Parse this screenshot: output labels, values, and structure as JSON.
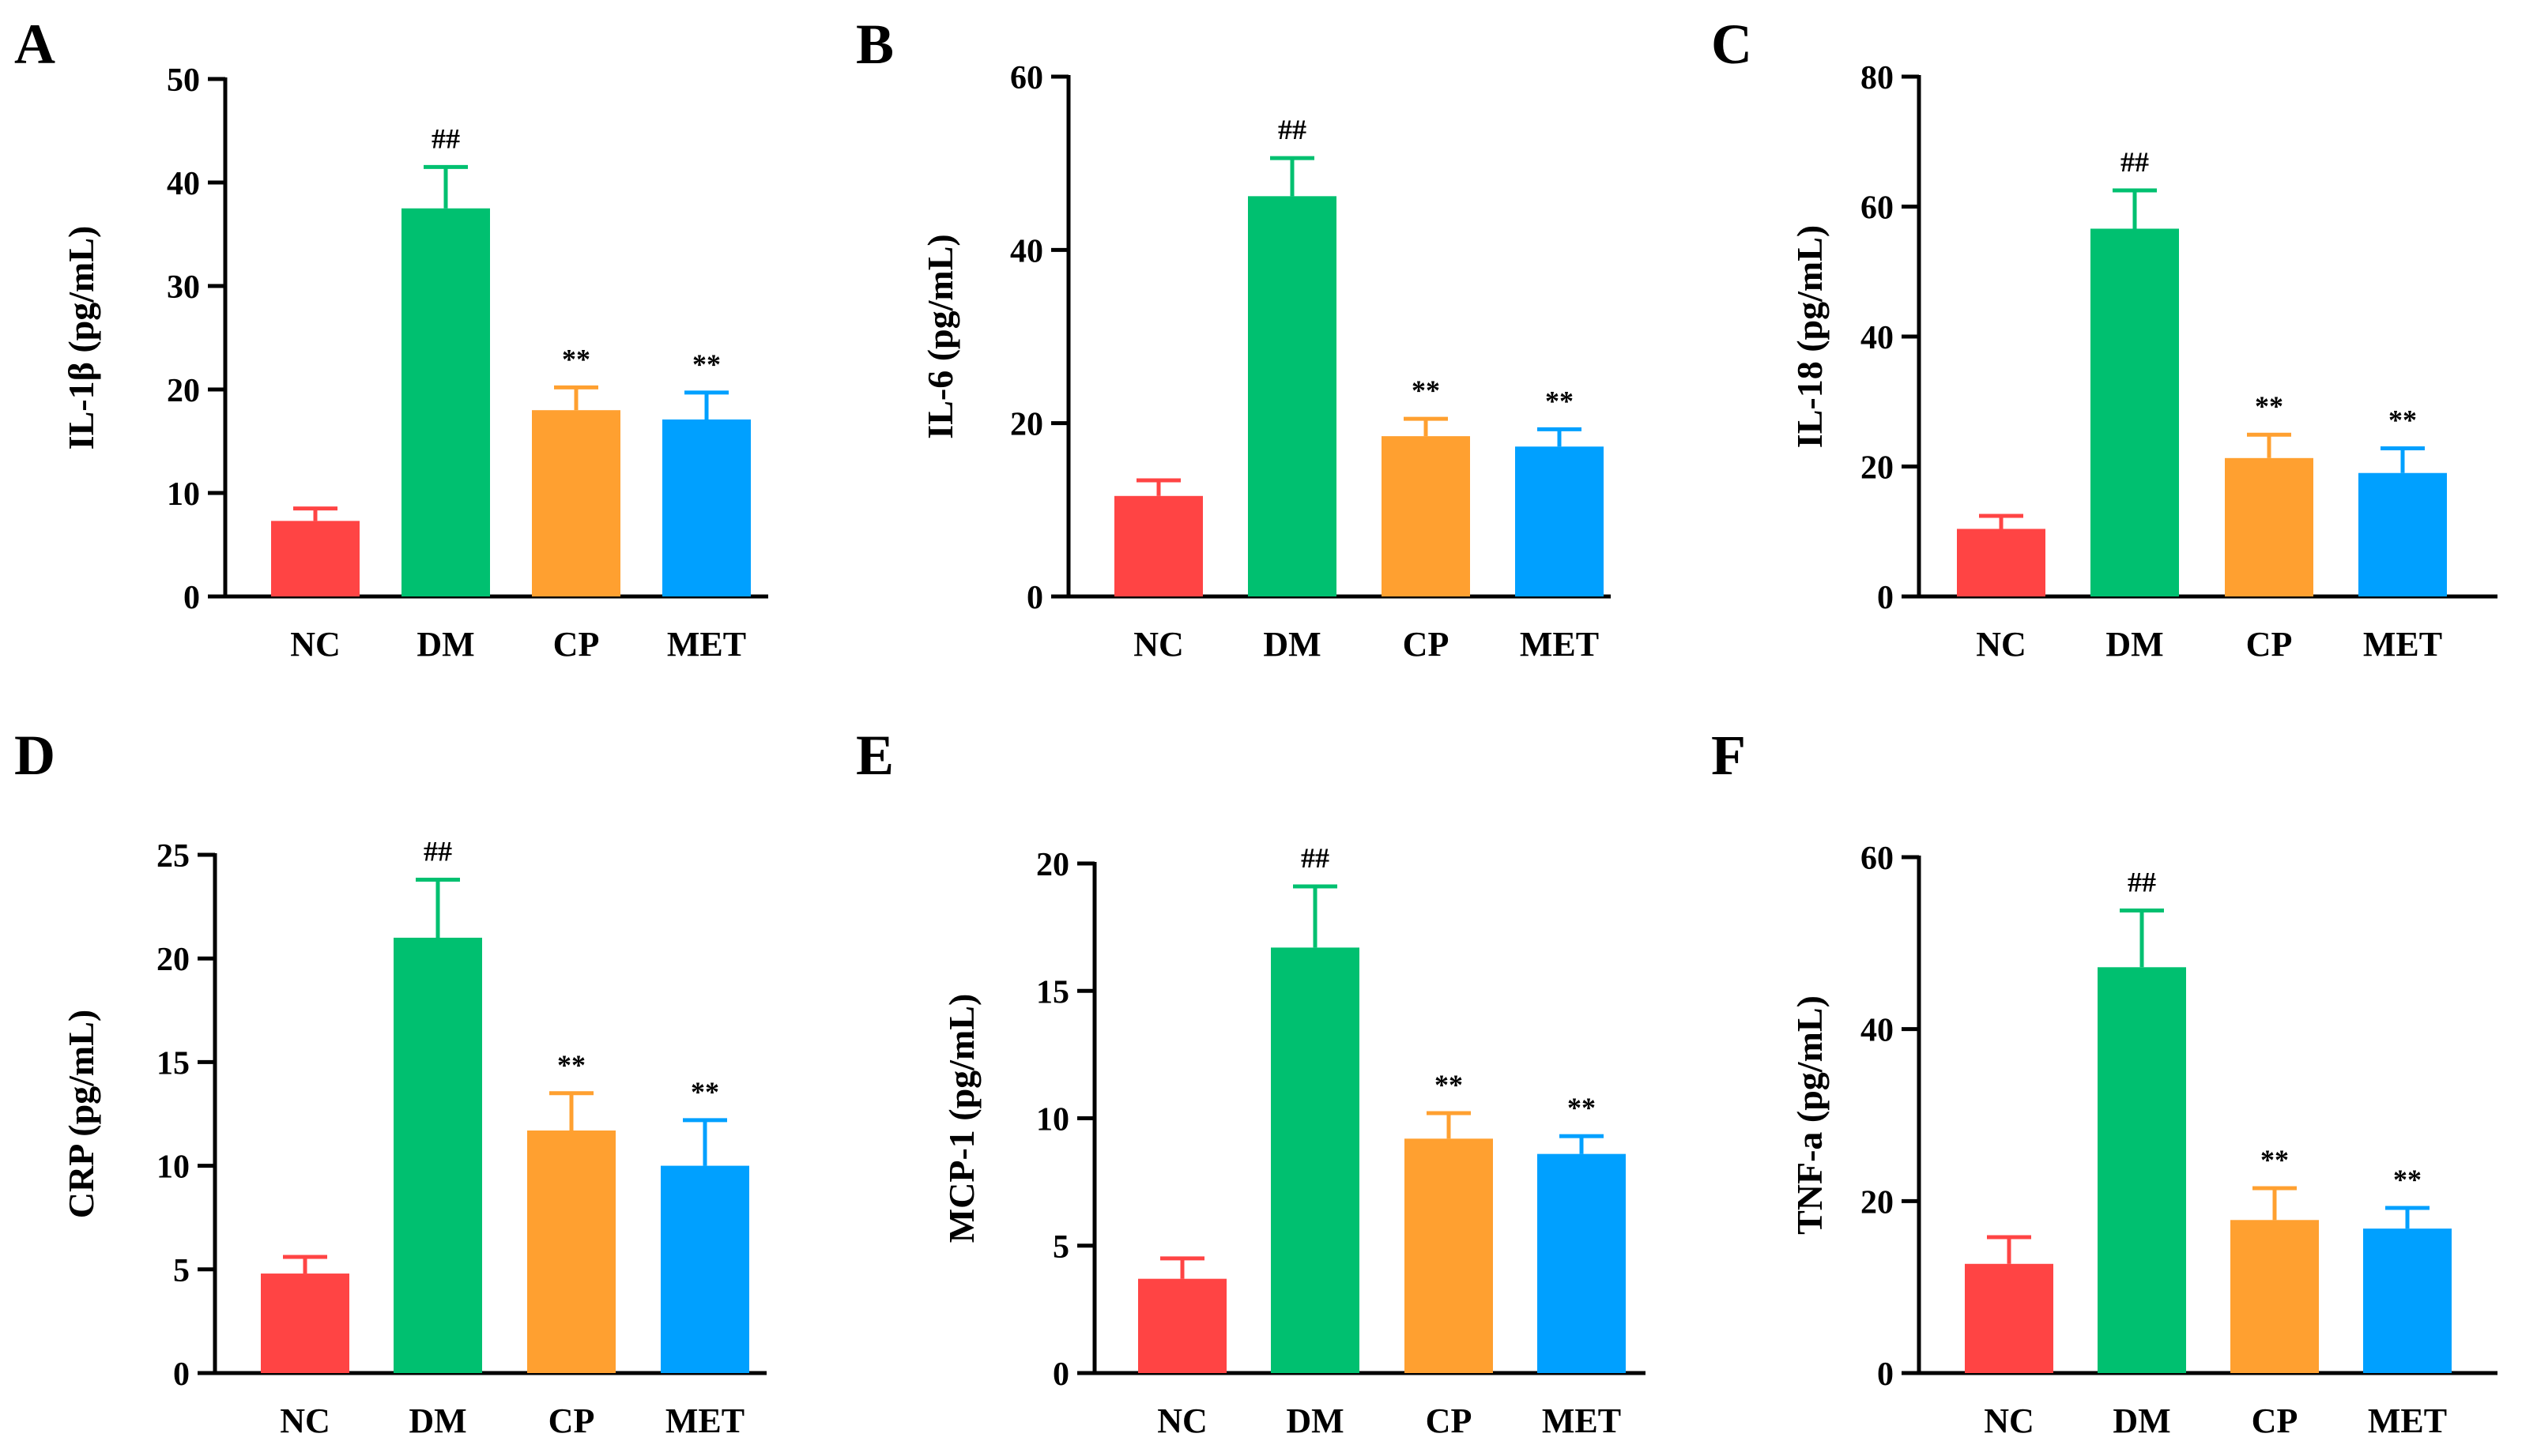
{
  "colors": {
    "NC": "#ff4444",
    "DM": "#00c070",
    "CP": "#ffa030",
    "MET": "#00a0ff",
    "axis": "#000000"
  },
  "chart_data": [
    {
      "type": "bar",
      "panel": "A",
      "ylabel": "IL-1β (pg/mL)",
      "ylim": [
        0,
        50
      ],
      "yticks": [
        0,
        10,
        20,
        30,
        40,
        50
      ],
      "categories": [
        "NC",
        "DM",
        "CP",
        "MET"
      ],
      "values": [
        7.3,
        37.5,
        18.0,
        17.1
      ],
      "errors": [
        1.2,
        4.0,
        2.2,
        2.6
      ],
      "annotations": [
        "",
        "##",
        "**",
        "**"
      ]
    },
    {
      "type": "bar",
      "panel": "B",
      "ylabel": "IL-6 (pg/mL)",
      "ylim": [
        0,
        60
      ],
      "yticks": [
        0,
        20,
        40,
        60
      ],
      "categories": [
        "NC",
        "DM",
        "CP",
        "MET"
      ],
      "values": [
        11.6,
        46.2,
        18.5,
        17.3
      ],
      "errors": [
        1.8,
        4.4,
        2.0,
        2.0
      ],
      "annotations": [
        "",
        "##",
        "**",
        "**"
      ]
    },
    {
      "type": "bar",
      "panel": "C",
      "ylabel": "IL-18 (pg/mL)",
      "ylim": [
        0,
        80
      ],
      "yticks": [
        0,
        20,
        40,
        60,
        80
      ],
      "categories": [
        "NC",
        "DM",
        "CP",
        "MET"
      ],
      "values": [
        10.4,
        56.6,
        21.3,
        19.0
      ],
      "errors": [
        2.0,
        5.9,
        3.6,
        3.8
      ],
      "annotations": [
        "",
        "##",
        "**",
        "**"
      ]
    },
    {
      "type": "bar",
      "panel": "D",
      "ylabel": "CRP (pg/mL)",
      "ylim": [
        0,
        25
      ],
      "yticks": [
        0,
        5,
        10,
        15,
        20,
        25
      ],
      "categories": [
        "NC",
        "DM",
        "CP",
        "MET"
      ],
      "values": [
        4.8,
        21.0,
        11.7,
        10.0
      ],
      "errors": [
        0.8,
        2.8,
        1.8,
        2.2
      ],
      "annotations": [
        "",
        "##",
        "**",
        "**"
      ]
    },
    {
      "type": "bar",
      "panel": "E",
      "ylabel": "MCP-1 (pg/mL)",
      "ylim": [
        0,
        20
      ],
      "yticks": [
        0,
        5,
        10,
        15,
        20
      ],
      "categories": [
        "NC",
        "DM",
        "CP",
        "MET"
      ],
      "values": [
        3.7,
        16.7,
        9.2,
        8.6
      ],
      "errors": [
        0.8,
        2.4,
        1.0,
        0.7
      ],
      "annotations": [
        "",
        "##",
        "**",
        "**"
      ]
    },
    {
      "type": "bar",
      "panel": "F",
      "ylabel": "TNF-a (pg/mL)",
      "ylim": [
        0,
        60
      ],
      "yticks": [
        0,
        20,
        40,
        60
      ],
      "categories": [
        "NC",
        "DM",
        "CP",
        "MET"
      ],
      "values": [
        12.7,
        47.2,
        17.8,
        16.8
      ],
      "errors": [
        3.1,
        6.6,
        3.7,
        2.4
      ],
      "annotations": [
        "",
        "##",
        "**",
        "**"
      ]
    }
  ]
}
